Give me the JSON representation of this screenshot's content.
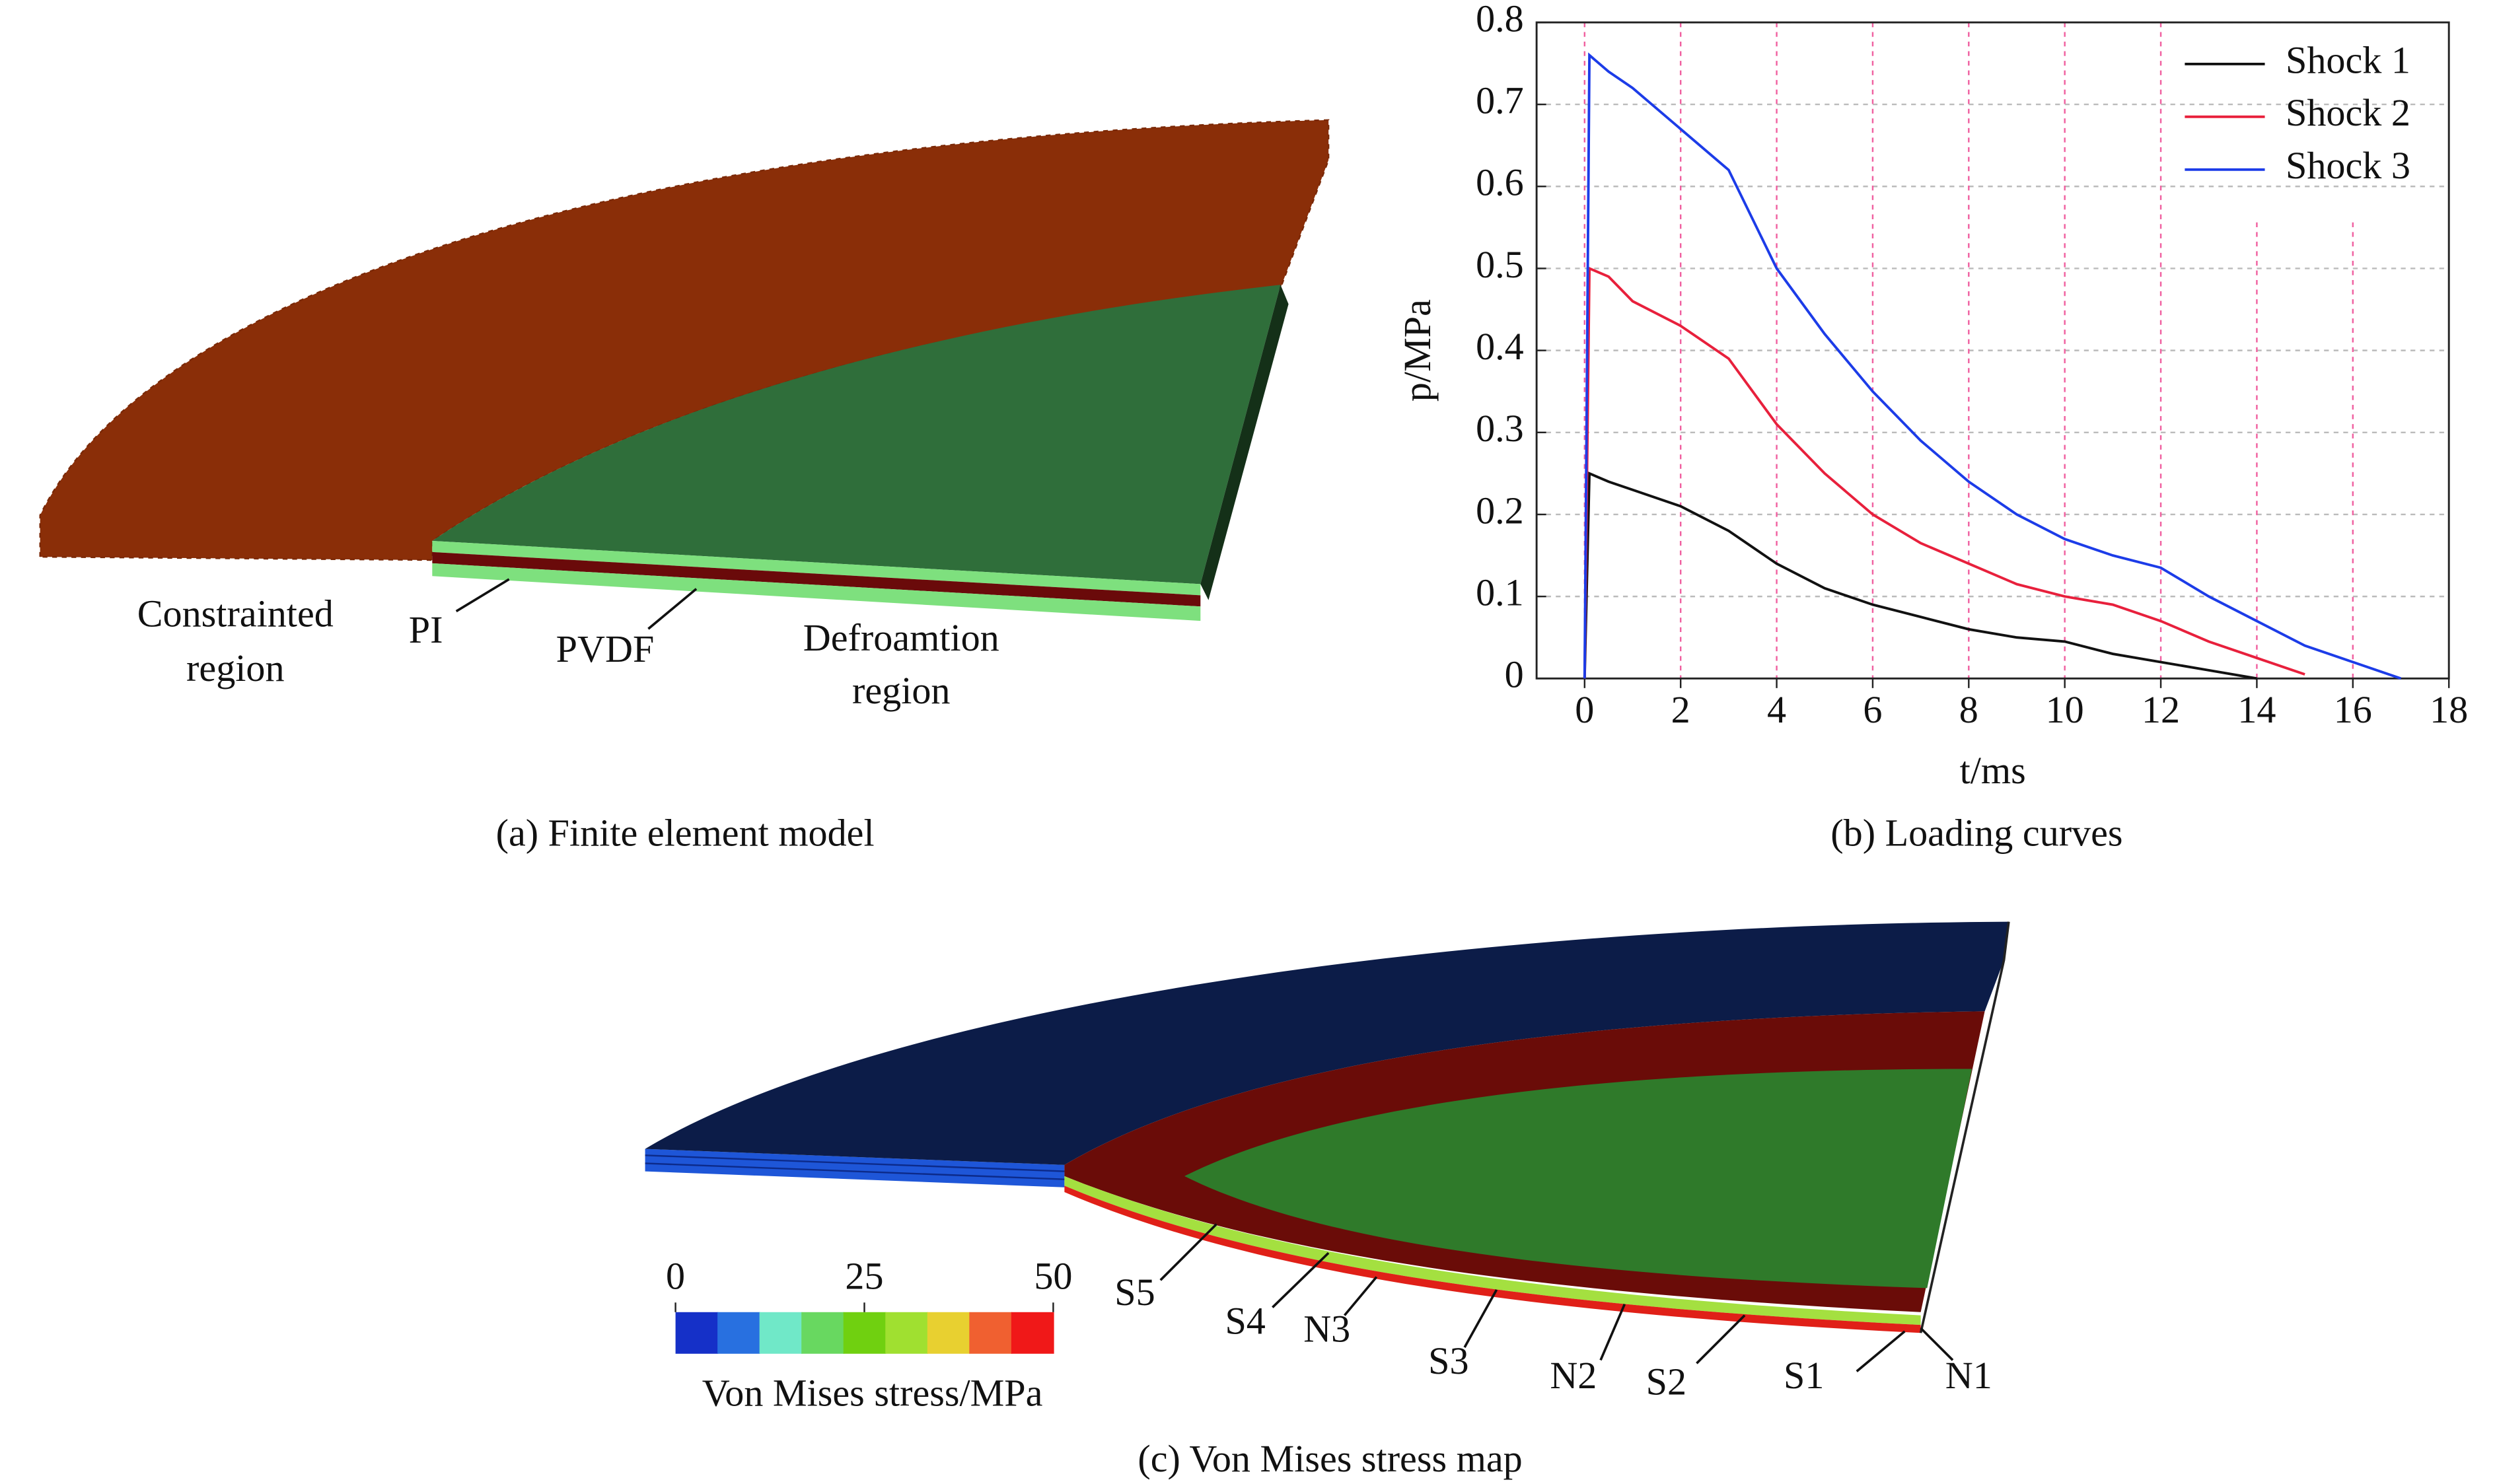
{
  "panel_a": {
    "labels": {
      "constrained": [
        "Constrainted",
        "region"
      ],
      "pi": [
        "PI"
      ],
      "pvdf": [
        "PVDF"
      ],
      "deformation": [
        "Defroamtion",
        "region"
      ]
    },
    "caption": "(a) Finite element model"
  },
  "chart_data": {
    "type": "line",
    "caption": "(b) Loading curves",
    "xlabel": "t/ms",
    "ylabel": "p/MPa",
    "x": [
      0,
      0.1,
      0.5,
      1,
      2,
      3,
      4,
      5,
      6,
      7,
      8,
      9,
      10,
      11,
      12,
      13,
      14,
      15,
      16,
      17
    ],
    "series": [
      {
        "name": "Shock 1",
        "color": "#111111",
        "values": [
          0,
          0.25,
          0.24,
          0.23,
          0.21,
          0.18,
          0.14,
          0.11,
          0.09,
          0.075,
          0.06,
          0.05,
          0.045,
          0.03,
          0.02,
          0.01,
          0,
          null,
          null,
          null
        ]
      },
      {
        "name": "Shock 2",
        "color": "#e8203c",
        "values": [
          0,
          0.5,
          0.49,
          0.46,
          0.43,
          0.39,
          0.31,
          0.25,
          0.2,
          0.165,
          0.14,
          0.115,
          0.1,
          0.09,
          0.07,
          0.045,
          0.025,
          0.005,
          null,
          null
        ]
      },
      {
        "name": "Shock 3",
        "color": "#1c3ce8",
        "values": [
          0,
          0.76,
          0.74,
          0.72,
          0.67,
          0.62,
          0.5,
          0.42,
          0.35,
          0.29,
          0.24,
          0.2,
          0.17,
          0.15,
          0.135,
          0.1,
          0.07,
          0.04,
          0.02,
          0
        ]
      }
    ],
    "xlim": [
      -1,
      18
    ],
    "ylim": [
      0,
      0.8
    ],
    "xticks": [
      0,
      2,
      4,
      6,
      8,
      10,
      12,
      14,
      16,
      18
    ],
    "yticks": [
      0,
      0.1,
      0.2,
      0.3,
      0.4,
      0.5,
      0.6,
      0.7,
      0.8
    ],
    "grid": true,
    "legend": "upper right"
  },
  "panel_c": {
    "caption": "(c) Von Mises stress map",
    "colorbar": {
      "label": "Von Mises stress/MPa",
      "range": [
        0,
        50
      ],
      "ticks": [
        0,
        25,
        50
      ],
      "colors": [
        "#1530c8",
        "#2870e0",
        "#70e8c8",
        "#68d860",
        "#70d010",
        "#a0e030",
        "#e8d030",
        "#f06030",
        "#f01818"
      ]
    },
    "points": [
      "S5",
      "S4",
      "N3",
      "S3",
      "N2",
      "S2",
      "S1",
      "N1"
    ]
  }
}
